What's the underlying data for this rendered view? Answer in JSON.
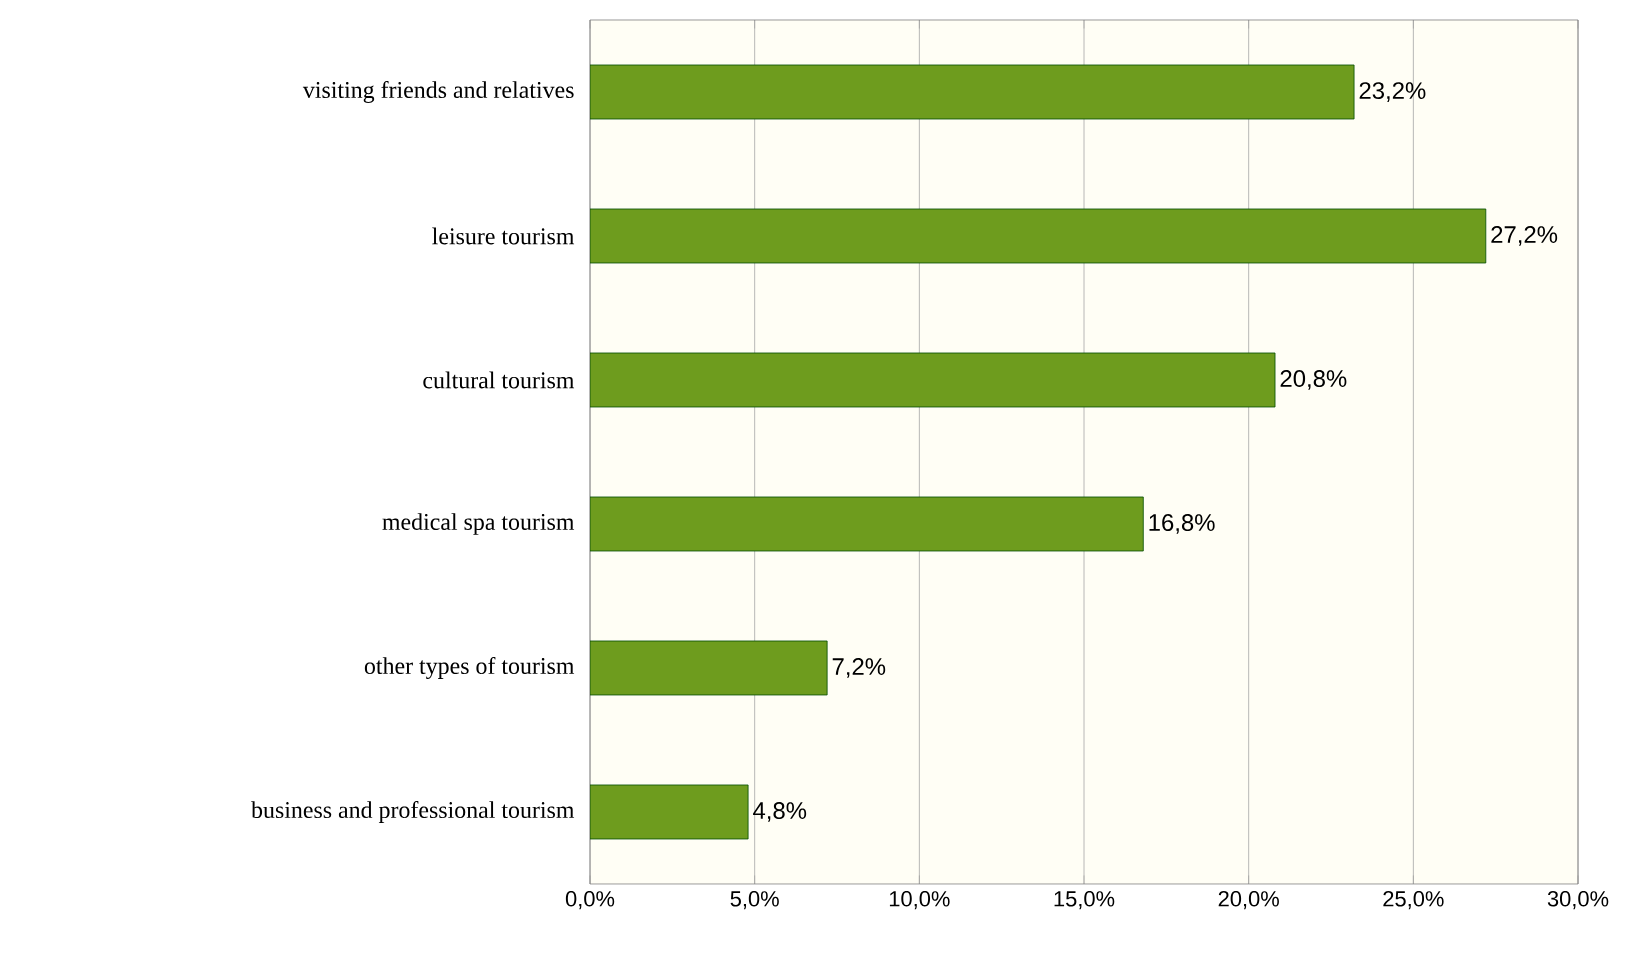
{
  "chart_data": {
    "type": "bar",
    "orientation": "horizontal",
    "categories": [
      "visiting friends and relatives",
      "leisure tourism",
      "cultural tourism",
      "medical spa tourism",
      "other types of tourism",
      "business and professional tourism"
    ],
    "values": [
      23.2,
      27.2,
      20.8,
      16.8,
      7.2,
      4.8
    ],
    "value_labels": [
      "23,2%",
      "27,2%",
      "20,8%",
      "16,8%",
      "7,2%",
      "4,8%"
    ],
    "color": "#6e9c1e",
    "xlim": [
      0,
      30
    ],
    "xticks": [
      {
        "value": 0,
        "label": "0,0%"
      },
      {
        "value": 5,
        "label": "5,0%"
      },
      {
        "value": 10,
        "label": "10,0%"
      },
      {
        "value": 15,
        "label": "15,0%"
      },
      {
        "value": 20,
        "label": "20,0%"
      },
      {
        "value": 25,
        "label": "25,0%"
      },
      {
        "value": 30,
        "label": "30,0%"
      }
    ],
    "grid": "x"
  }
}
